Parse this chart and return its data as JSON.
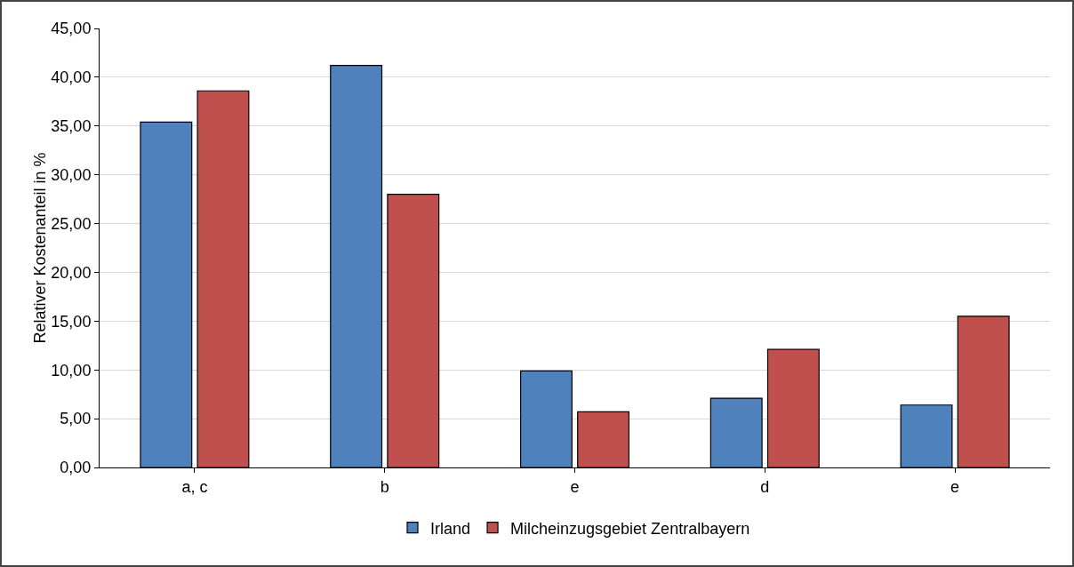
{
  "chart_data": {
    "type": "bar",
    "ylabel": "Relativer Kostenanteil in %",
    "categories": [
      "a, c",
      "b",
      "e",
      "d",
      "e"
    ],
    "series": [
      {
        "name": "Irland",
        "color": "#4f81bd",
        "values": [
          35.4,
          41.2,
          9.9,
          7.1,
          6.4
        ]
      },
      {
        "name": "Milcheinzugsgebiet Zentralbayern",
        "color": "#c0504d",
        "values": [
          38.6,
          28.0,
          5.7,
          12.1,
          15.5
        ]
      }
    ],
    "ylim": [
      0,
      45
    ],
    "yticks": [
      {
        "value": 0,
        "label": "0,00"
      },
      {
        "value": 5,
        "label": "5,00"
      },
      {
        "value": 10,
        "label": "10,00"
      },
      {
        "value": 15,
        "label": "15,00"
      },
      {
        "value": 20,
        "label": "20,00"
      },
      {
        "value": 25,
        "label": "25,00"
      },
      {
        "value": 30,
        "label": "30,00"
      },
      {
        "value": 35,
        "label": "35,00"
      },
      {
        "value": 40,
        "label": "40,00"
      },
      {
        "value": 45,
        "label": "45,00"
      }
    ],
    "grid": "y",
    "legend": "bottom"
  }
}
